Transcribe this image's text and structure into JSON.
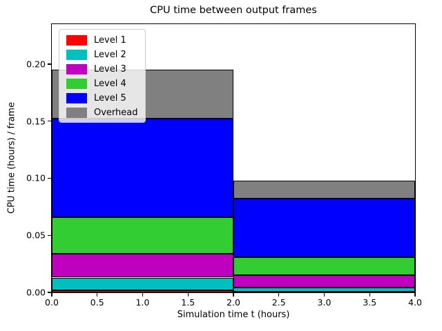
{
  "figure": {
    "background_color": "#ffffff",
    "axes_edge_color": "#000000"
  },
  "chart_data": {
    "type": "bar",
    "stacked": true,
    "orientation": "vertical",
    "title": "CPU time between output frames",
    "xlabel": "Simulation time t (hours)",
    "ylabel": "CPU time (hours) / frame",
    "xlim": [
      0,
      4
    ],
    "ylim": [
      0,
      0.235
    ],
    "grid": false,
    "x_ticks": [
      0.0,
      0.5,
      1.0,
      1.5,
      2.0,
      2.5,
      3.0,
      3.5,
      4.0
    ],
    "x_tick_labels": [
      "0.0",
      "0.5",
      "1.0",
      "1.5",
      "2.0",
      "2.5",
      "3.0",
      "3.5",
      "4.0"
    ],
    "y_ticks": [
      0.0,
      0.05,
      0.1,
      0.15,
      0.2
    ],
    "y_tick_labels": [
      "0.00",
      "0.05",
      "0.10",
      "0.15",
      "0.20"
    ],
    "bar_edges_x": [
      0,
      2,
      4
    ],
    "bar_edge_color": "#000000",
    "legend": {
      "position": "upper left",
      "entries": [
        "Level 1",
        "Level 2",
        "Level 3",
        "Level 4",
        "Level 5",
        "Overhead"
      ]
    },
    "series": [
      {
        "name": "Level 1",
        "color": "#ff0000",
        "values": [
          0.002,
          0.0005
        ]
      },
      {
        "name": "Level 2",
        "color": "#00bfbf",
        "values": [
          0.011,
          0.0035
        ]
      },
      {
        "name": "Level 3",
        "color": "#bf00bf",
        "values": [
          0.021,
          0.011
        ]
      },
      {
        "name": "Level 4",
        "color": "#32cd32",
        "values": [
          0.032,
          0.016
        ]
      },
      {
        "name": "Level 5",
        "color": "#0000ff",
        "values": [
          0.086,
          0.051
        ]
      },
      {
        "name": "Overhead",
        "color": "#808080",
        "values": [
          0.043,
          0.016
        ]
      }
    ],
    "bar_totals": [
      0.195,
      0.098
    ]
  }
}
